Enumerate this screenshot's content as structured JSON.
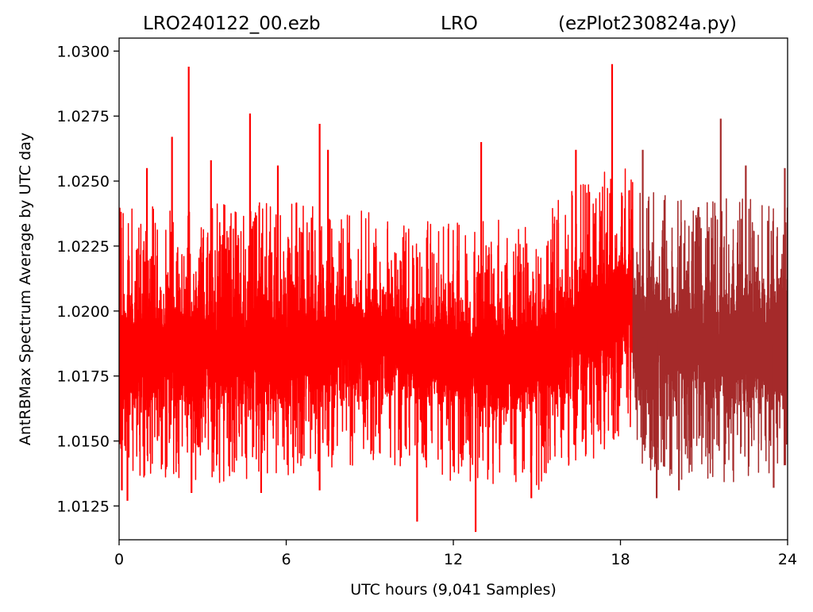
{
  "header": {
    "file_label": "LRO240122_00.ezb",
    "site_label": "LRO",
    "script_label": "(ezPlot230824a.py)"
  },
  "chart_data": {
    "type": "line",
    "xlabel": "UTC hours  (9,041 Samples)",
    "ylabel": "AntRBMax Spectrum Average by UTC day",
    "xlim": [
      0,
      24
    ],
    "ylim": [
      1.0112,
      1.0305
    ],
    "x_ticks": [
      0,
      6,
      12,
      18,
      24
    ],
    "x_tick_labels": [
      "0",
      "6",
      "12",
      "18",
      "24"
    ],
    "y_ticks": [
      1.0125,
      1.015,
      1.0175,
      1.02,
      1.0225,
      1.025,
      1.0275,
      1.03
    ],
    "y_tick_labels": [
      "1.0125",
      "1.0150",
      "1.0175",
      "1.0200",
      "1.0225",
      "1.0250",
      "1.0275",
      "1.0300"
    ],
    "grid": false,
    "sample_count": 9041,
    "series": [
      {
        "color": "#ff0000",
        "x_range": [
          0,
          18.45
        ],
        "band": [
          [
            0,
            1.0152,
            1.0218
          ],
          [
            6,
            1.0152,
            1.022
          ],
          [
            9.5,
            1.016,
            1.0216
          ],
          [
            12,
            1.0152,
            1.0212
          ],
          [
            15,
            1.0148,
            1.0215
          ],
          [
            18.4,
            1.0168,
            1.024
          ]
        ],
        "spikes": [
          {
            "x": 0.1,
            "y": 1.0131
          },
          {
            "x": 0.3,
            "y": 1.0127
          },
          {
            "x": 1.0,
            "y": 1.0255
          },
          {
            "x": 1.9,
            "y": 1.0267
          },
          {
            "x": 2.5,
            "y": 1.0294
          },
          {
            "x": 2.6,
            "y": 1.013
          },
          {
            "x": 3.3,
            "y": 1.0258
          },
          {
            "x": 4.7,
            "y": 1.0276
          },
          {
            "x": 5.1,
            "y": 1.013
          },
          {
            "x": 5.7,
            "y": 1.0256
          },
          {
            "x": 7.2,
            "y": 1.0272
          },
          {
            "x": 7.2,
            "y": 1.0131
          },
          {
            "x": 7.5,
            "y": 1.0262
          },
          {
            "x": 10.7,
            "y": 1.0119
          },
          {
            "x": 12.8,
            "y": 1.0115
          },
          {
            "x": 13.0,
            "y": 1.0265
          },
          {
            "x": 14.8,
            "y": 1.0128
          },
          {
            "x": 16.4,
            "y": 1.0262
          },
          {
            "x": 17.7,
            "y": 1.0295
          }
        ]
      },
      {
        "color": "#a52a2a",
        "x_range": [
          18.45,
          24
        ],
        "band": [
          [
            18.45,
            1.0155,
            1.0225
          ],
          [
            21,
            1.0152,
            1.0222
          ],
          [
            24,
            1.0152,
            1.0222
          ]
        ],
        "spikes": [
          {
            "x": 18.8,
            "y": 1.0262
          },
          {
            "x": 19.3,
            "y": 1.0128
          },
          {
            "x": 20.1,
            "y": 1.0131
          },
          {
            "x": 20.8,
            "y": 1.024
          },
          {
            "x": 21.6,
            "y": 1.0274
          },
          {
            "x": 22.5,
            "y": 1.0256
          },
          {
            "x": 23.5,
            "y": 1.0132
          },
          {
            "x": 23.9,
            "y": 1.0255
          }
        ]
      }
    ]
  }
}
